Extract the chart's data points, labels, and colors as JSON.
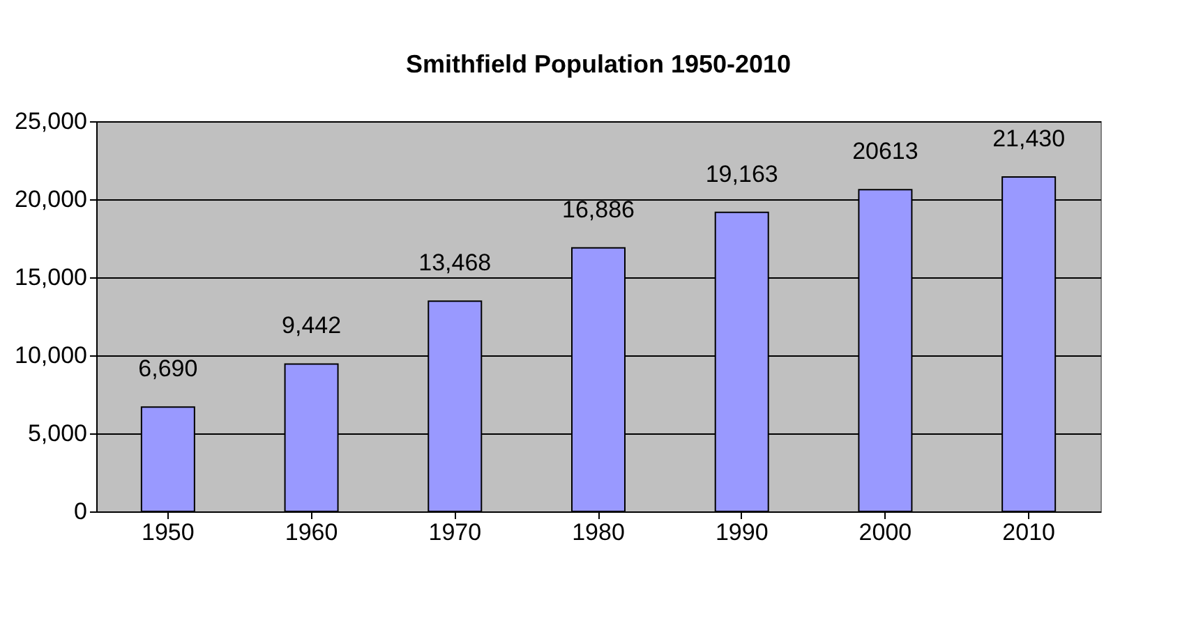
{
  "chart_data": {
    "type": "bar",
    "title": "Smithfield Population 1950-2010",
    "categories": [
      "1950",
      "1960",
      "1970",
      "1980",
      "1990",
      "2000",
      "2010"
    ],
    "values": [
      6690,
      9442,
      13468,
      16886,
      19163,
      20613,
      21430
    ],
    "value_labels": [
      "6,690",
      "9,442",
      "13,468",
      "16,886",
      "19,163",
      "20613",
      "21,430"
    ],
    "color": "#9999ff",
    "ylim": [
      0,
      25000
    ],
    "yticks": [
      {
        "value": 0,
        "label": "0"
      },
      {
        "value": 5000,
        "label": "5,000"
      },
      {
        "value": 10000,
        "label": "10,000"
      },
      {
        "value": 15000,
        "label": "15,000"
      },
      {
        "value": 20000,
        "label": "20,000"
      },
      {
        "value": 25000,
        "label": "25,000"
      }
    ],
    "grid": "y"
  }
}
